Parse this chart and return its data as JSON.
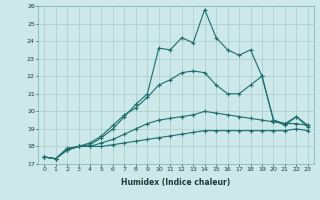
{
  "xlabel": "Humidex (Indice chaleur)",
  "xlim": [
    -0.5,
    23.5
  ],
  "ylim": [
    17,
    26
  ],
  "yticks": [
    17,
    18,
    19,
    20,
    21,
    22,
    23,
    24,
    25,
    26
  ],
  "xticks": [
    0,
    1,
    2,
    3,
    4,
    5,
    6,
    7,
    8,
    9,
    10,
    11,
    12,
    13,
    14,
    15,
    16,
    17,
    18,
    19,
    20,
    21,
    22,
    23
  ],
  "bg_color": "#cce8e8",
  "line_color": "#1a6e6e",
  "grid_color": "#aacccc",
  "series": {
    "line1": [
      17.4,
      17.3,
      17.8,
      18.0,
      18.1,
      18.5,
      19.0,
      19.7,
      20.4,
      21.0,
      23.6,
      23.5,
      24.2,
      23.9,
      25.8,
      24.2,
      23.5,
      23.2,
      23.5,
      22.0,
      19.5,
      19.3,
      19.7,
      19.2
    ],
    "line2": [
      17.4,
      17.3,
      17.9,
      18.0,
      18.2,
      18.6,
      19.2,
      19.8,
      20.2,
      20.8,
      21.5,
      21.8,
      22.2,
      22.3,
      22.2,
      21.5,
      21.0,
      21.0,
      21.5,
      22.0,
      19.5,
      19.2,
      19.7,
      19.1
    ],
    "line3": [
      17.4,
      17.3,
      17.8,
      18.0,
      18.0,
      18.2,
      18.4,
      18.7,
      19.0,
      19.3,
      19.5,
      19.6,
      19.7,
      19.8,
      20.0,
      19.9,
      19.8,
      19.7,
      19.6,
      19.5,
      19.4,
      19.3,
      19.3,
      19.2
    ],
    "line4": [
      17.4,
      17.3,
      17.8,
      18.0,
      18.0,
      18.0,
      18.1,
      18.2,
      18.3,
      18.4,
      18.5,
      18.6,
      18.7,
      18.8,
      18.9,
      18.9,
      18.9,
      18.9,
      18.9,
      18.9,
      18.9,
      18.9,
      19.0,
      18.9
    ]
  }
}
